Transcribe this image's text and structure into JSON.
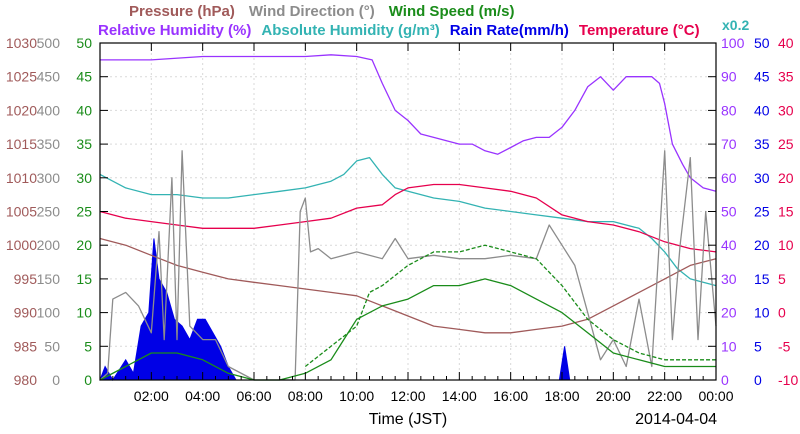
{
  "chart_data": {
    "type": "line",
    "header_row1": [
      {
        "key": "pressure",
        "text": "Pressure (hPa)",
        "color": "#a05a5a"
      },
      {
        "key": "wind_dir",
        "text": "Wind Direction (°)",
        "color": "#8c8c8c"
      },
      {
        "key": "wind_speed",
        "text": "Wind Speed (m/s)",
        "color": "#1a8c1a"
      }
    ],
    "header_row2": [
      {
        "key": "rh",
        "text": "Relative Humidity (%)",
        "color": "#9933ff"
      },
      {
        "key": "ah",
        "text": "Absolute Humidity (g/m³)",
        "color": "#33b3b3"
      },
      {
        "key": "rain",
        "text": "Rain Rate(mm/h)",
        "color": "#0000e6"
      },
      {
        "key": "temp",
        "text": "Temperature (°C)",
        "color": "#e6004d"
      }
    ],
    "ah_scale_note": "x0.2",
    "xlabel": "Time (JST)",
    "date_label": "2014-04-04",
    "x_tick_labels": [
      "02:00",
      "04:00",
      "06:00",
      "08:00",
      "10:00",
      "12:00",
      "14:00",
      "16:00",
      "18:00",
      "20:00",
      "22:00",
      "00:00"
    ],
    "x_ticks_hours": [
      2,
      4,
      6,
      8,
      10,
      12,
      14,
      16,
      18,
      20,
      22,
      24
    ],
    "xlim_hours": [
      0,
      24
    ],
    "grid": true,
    "axes": {
      "pressure": {
        "ticks": [
          "980",
          "985",
          "990",
          "995",
          "1000",
          "1005",
          "1010",
          "1015",
          "1020",
          "1025",
          "1030"
        ],
        "range": [
          980,
          1030
        ],
        "color": "#a05a5a"
      },
      "wind_dir": {
        "ticks": [
          "0",
          "50",
          "100",
          "150",
          "200",
          "250",
          "300",
          "350",
          "400",
          "450",
          "500"
        ],
        "range": [
          0,
          500
        ],
        "color": "#8c8c8c"
      },
      "wind_speed": {
        "ticks": [
          "0",
          "5",
          "10",
          "15",
          "20",
          "25",
          "30",
          "35",
          "40",
          "45",
          "50"
        ],
        "range": [
          0,
          50
        ],
        "color": "#1a8c1a"
      },
      "rh": {
        "ticks": [
          "0",
          "10",
          "20",
          "30",
          "40",
          "50",
          "60",
          "70",
          "80",
          "90",
          "100"
        ],
        "range": [
          0,
          100
        ],
        "color": "#9933ff"
      },
      "rain": {
        "ticks": [
          "0",
          "5",
          "10",
          "15",
          "20",
          "25",
          "30",
          "35",
          "40",
          "45",
          "50"
        ],
        "range": [
          0,
          50
        ],
        "color": "#0000e6"
      },
      "temp": {
        "ticks": [
          "-10",
          "-5",
          "0",
          "5",
          "10",
          "15",
          "20",
          "25",
          "30",
          "35",
          "40"
        ],
        "range": [
          -10,
          40
        ],
        "color": "#e6004d"
      }
    },
    "series": [
      {
        "name": "Relative Humidity",
        "axis": "rh",
        "color": "#9933ff",
        "points": [
          [
            0,
            95
          ],
          [
            1,
            95
          ],
          [
            2,
            95
          ],
          [
            4,
            96
          ],
          [
            6,
            96
          ],
          [
            8,
            96
          ],
          [
            9,
            96.5
          ],
          [
            10,
            96
          ],
          [
            10.6,
            95
          ],
          [
            11,
            88
          ],
          [
            11.5,
            80
          ],
          [
            12,
            77
          ],
          [
            12.5,
            73
          ],
          [
            13,
            72
          ],
          [
            14,
            70
          ],
          [
            14.5,
            70
          ],
          [
            15,
            68
          ],
          [
            15.5,
            67
          ],
          [
            16,
            69
          ],
          [
            16.5,
            71
          ],
          [
            17,
            72
          ],
          [
            17.5,
            72
          ],
          [
            18,
            75
          ],
          [
            18.5,
            80
          ],
          [
            19,
            87
          ],
          [
            19.5,
            90
          ],
          [
            20,
            86
          ],
          [
            20.5,
            90
          ],
          [
            21,
            90
          ],
          [
            21.5,
            90
          ],
          [
            21.8,
            88
          ],
          [
            22,
            82
          ],
          [
            22.3,
            70
          ],
          [
            22.7,
            64
          ],
          [
            23,
            60
          ],
          [
            23.5,
            57
          ],
          [
            24,
            56
          ]
        ]
      },
      {
        "name": "Absolute Humidity",
        "axis": "rh",
        "color": "#33b3b3",
        "points": [
          [
            0,
            61
          ],
          [
            1,
            57
          ],
          [
            2,
            55
          ],
          [
            3,
            55
          ],
          [
            4,
            54
          ],
          [
            5,
            54
          ],
          [
            6,
            55
          ],
          [
            7,
            56
          ],
          [
            8,
            57
          ],
          [
            9,
            59
          ],
          [
            9.5,
            61
          ],
          [
            10,
            65
          ],
          [
            10.5,
            66
          ],
          [
            11,
            61
          ],
          [
            11.5,
            57
          ],
          [
            12,
            56
          ],
          [
            13,
            54
          ],
          [
            14,
            53
          ],
          [
            15,
            51
          ],
          [
            16,
            50
          ],
          [
            17,
            49
          ],
          [
            18,
            48
          ],
          [
            19,
            47
          ],
          [
            20,
            47
          ],
          [
            21,
            45
          ],
          [
            21.5,
            42
          ],
          [
            22,
            38
          ],
          [
            22.5,
            33
          ],
          [
            23,
            30
          ],
          [
            24,
            28
          ]
        ]
      },
      {
        "name": "Temperature",
        "axis": "temp",
        "color": "#e6004d",
        "points": [
          [
            0,
            15
          ],
          [
            1,
            14
          ],
          [
            2,
            13.5
          ],
          [
            3,
            13
          ],
          [
            4,
            12.5
          ],
          [
            5,
            12.5
          ],
          [
            6,
            12.5
          ],
          [
            7,
            13
          ],
          [
            8,
            13.5
          ],
          [
            9,
            14
          ],
          [
            10,
            15.5
          ],
          [
            11,
            16
          ],
          [
            11.5,
            17.5
          ],
          [
            12,
            18.5
          ],
          [
            13,
            19
          ],
          [
            14,
            19
          ],
          [
            15,
            18.5
          ],
          [
            16,
            18
          ],
          [
            17,
            17
          ],
          [
            18,
            14.5
          ],
          [
            19,
            13.5
          ],
          [
            20,
            13
          ],
          [
            21,
            12
          ],
          [
            22,
            10.5
          ],
          [
            23,
            9.5
          ],
          [
            24,
            9
          ]
        ]
      },
      {
        "name": "Pressure",
        "axis": "pressure",
        "color": "#a05a5a",
        "points": [
          [
            0,
            1001
          ],
          [
            1,
            1000
          ],
          [
            2,
            998.5
          ],
          [
            3,
            997
          ],
          [
            4,
            996
          ],
          [
            5,
            995
          ],
          [
            6,
            994.5
          ],
          [
            7,
            994
          ],
          [
            8,
            993.5
          ],
          [
            9,
            993
          ],
          [
            10,
            992.5
          ],
          [
            11,
            991
          ],
          [
            12,
            989.5
          ],
          [
            13,
            988
          ],
          [
            14,
            987.5
          ],
          [
            15,
            987
          ],
          [
            16,
            987
          ],
          [
            17,
            987.5
          ],
          [
            18,
            988
          ],
          [
            19,
            989
          ],
          [
            20,
            991
          ],
          [
            21,
            993
          ],
          [
            22,
            995
          ],
          [
            23,
            997
          ],
          [
            24,
            998
          ]
        ]
      },
      {
        "name": "Wind Direction",
        "axis": "wind_dir",
        "color": "#8c8c8c",
        "points": [
          [
            0,
            0
          ],
          [
            0.3,
            10
          ],
          [
            0.5,
            120
          ],
          [
            1,
            130
          ],
          [
            1.5,
            110
          ],
          [
            2,
            70
          ],
          [
            2.3,
            220
          ],
          [
            2.5,
            60
          ],
          [
            2.8,
            300
          ],
          [
            3,
            60
          ],
          [
            3.2,
            340
          ],
          [
            3.5,
            80
          ],
          [
            4,
            60
          ],
          [
            4.5,
            60
          ],
          [
            5,
            20
          ],
          [
            6,
            0
          ],
          [
            7.6,
            0
          ],
          [
            7.8,
            250
          ],
          [
            8,
            270
          ],
          [
            8.2,
            190
          ],
          [
            8.5,
            195
          ],
          [
            9,
            180
          ],
          [
            10,
            190
          ],
          [
            11,
            180
          ],
          [
            11.5,
            210
          ],
          [
            12,
            180
          ],
          [
            13,
            185
          ],
          [
            14,
            180
          ],
          [
            15,
            180
          ],
          [
            16,
            185
          ],
          [
            17,
            180
          ],
          [
            17.5,
            230
          ],
          [
            18,
            200
          ],
          [
            18.5,
            170
          ],
          [
            19,
            100
          ],
          [
            19.5,
            30
          ],
          [
            20,
            60
          ],
          [
            20.5,
            20
          ],
          [
            21,
            120
          ],
          [
            21.5,
            20
          ],
          [
            22,
            340
          ],
          [
            22.3,
            60
          ],
          [
            22.6,
            200
          ],
          [
            23,
            330
          ],
          [
            23.3,
            60
          ],
          [
            23.6,
            250
          ],
          [
            24,
            80
          ]
        ]
      },
      {
        "name": "Wind Speed",
        "axis": "wind_speed",
        "color": "#1a8c1a",
        "points": [
          [
            0,
            0
          ],
          [
            1,
            2
          ],
          [
            2,
            4
          ],
          [
            3,
            4
          ],
          [
            4,
            3
          ],
          [
            5,
            1
          ],
          [
            6,
            0
          ],
          [
            7,
            0
          ],
          [
            8,
            1
          ],
          [
            9,
            3
          ],
          [
            9.5,
            6
          ],
          [
            10,
            9
          ],
          [
            11,
            11
          ],
          [
            12,
            12
          ],
          [
            13,
            14
          ],
          [
            14,
            14
          ],
          [
            15,
            15
          ],
          [
            16,
            14
          ],
          [
            17,
            12
          ],
          [
            18,
            10
          ],
          [
            19,
            7
          ],
          [
            20,
            4
          ],
          [
            21,
            3
          ],
          [
            22,
            2
          ],
          [
            23,
            2
          ],
          [
            24,
            2
          ]
        ]
      },
      {
        "name": "Wind Speed Max",
        "axis": "wind_speed",
        "color": "#1a8c1a",
        "dashed": true,
        "points": [
          [
            8,
            2
          ],
          [
            9,
            5
          ],
          [
            10,
            8
          ],
          [
            10.5,
            13
          ],
          [
            11,
            14
          ],
          [
            12,
            17
          ],
          [
            13,
            19
          ],
          [
            14,
            19
          ],
          [
            15,
            20
          ],
          [
            16,
            19
          ],
          [
            17,
            18
          ],
          [
            18,
            14
          ],
          [
            19,
            9
          ],
          [
            20,
            6
          ],
          [
            21,
            4
          ],
          [
            22,
            3
          ],
          [
            23,
            3
          ],
          [
            24,
            3
          ]
        ]
      }
    ],
    "rain_rate": {
      "axis": "rain",
      "color": "#0000e6",
      "points": [
        [
          0,
          0
        ],
        [
          0.2,
          2
        ],
        [
          0.5,
          0
        ],
        [
          1,
          3
        ],
        [
          1.3,
          1
        ],
        [
          1.6,
          8
        ],
        [
          1.9,
          10
        ],
        [
          2.1,
          21
        ],
        [
          2.3,
          15
        ],
        [
          2.6,
          13
        ],
        [
          2.9,
          9
        ],
        [
          3.2,
          8
        ],
        [
          3.5,
          6
        ],
        [
          3.8,
          9
        ],
        [
          4.1,
          9
        ],
        [
          4.4,
          7
        ],
        [
          4.7,
          5
        ],
        [
          5,
          2
        ],
        [
          5.3,
          0
        ],
        [
          17.9,
          0
        ],
        [
          18.1,
          5
        ],
        [
          18.3,
          0
        ],
        [
          24,
          0
        ]
      ]
    }
  }
}
